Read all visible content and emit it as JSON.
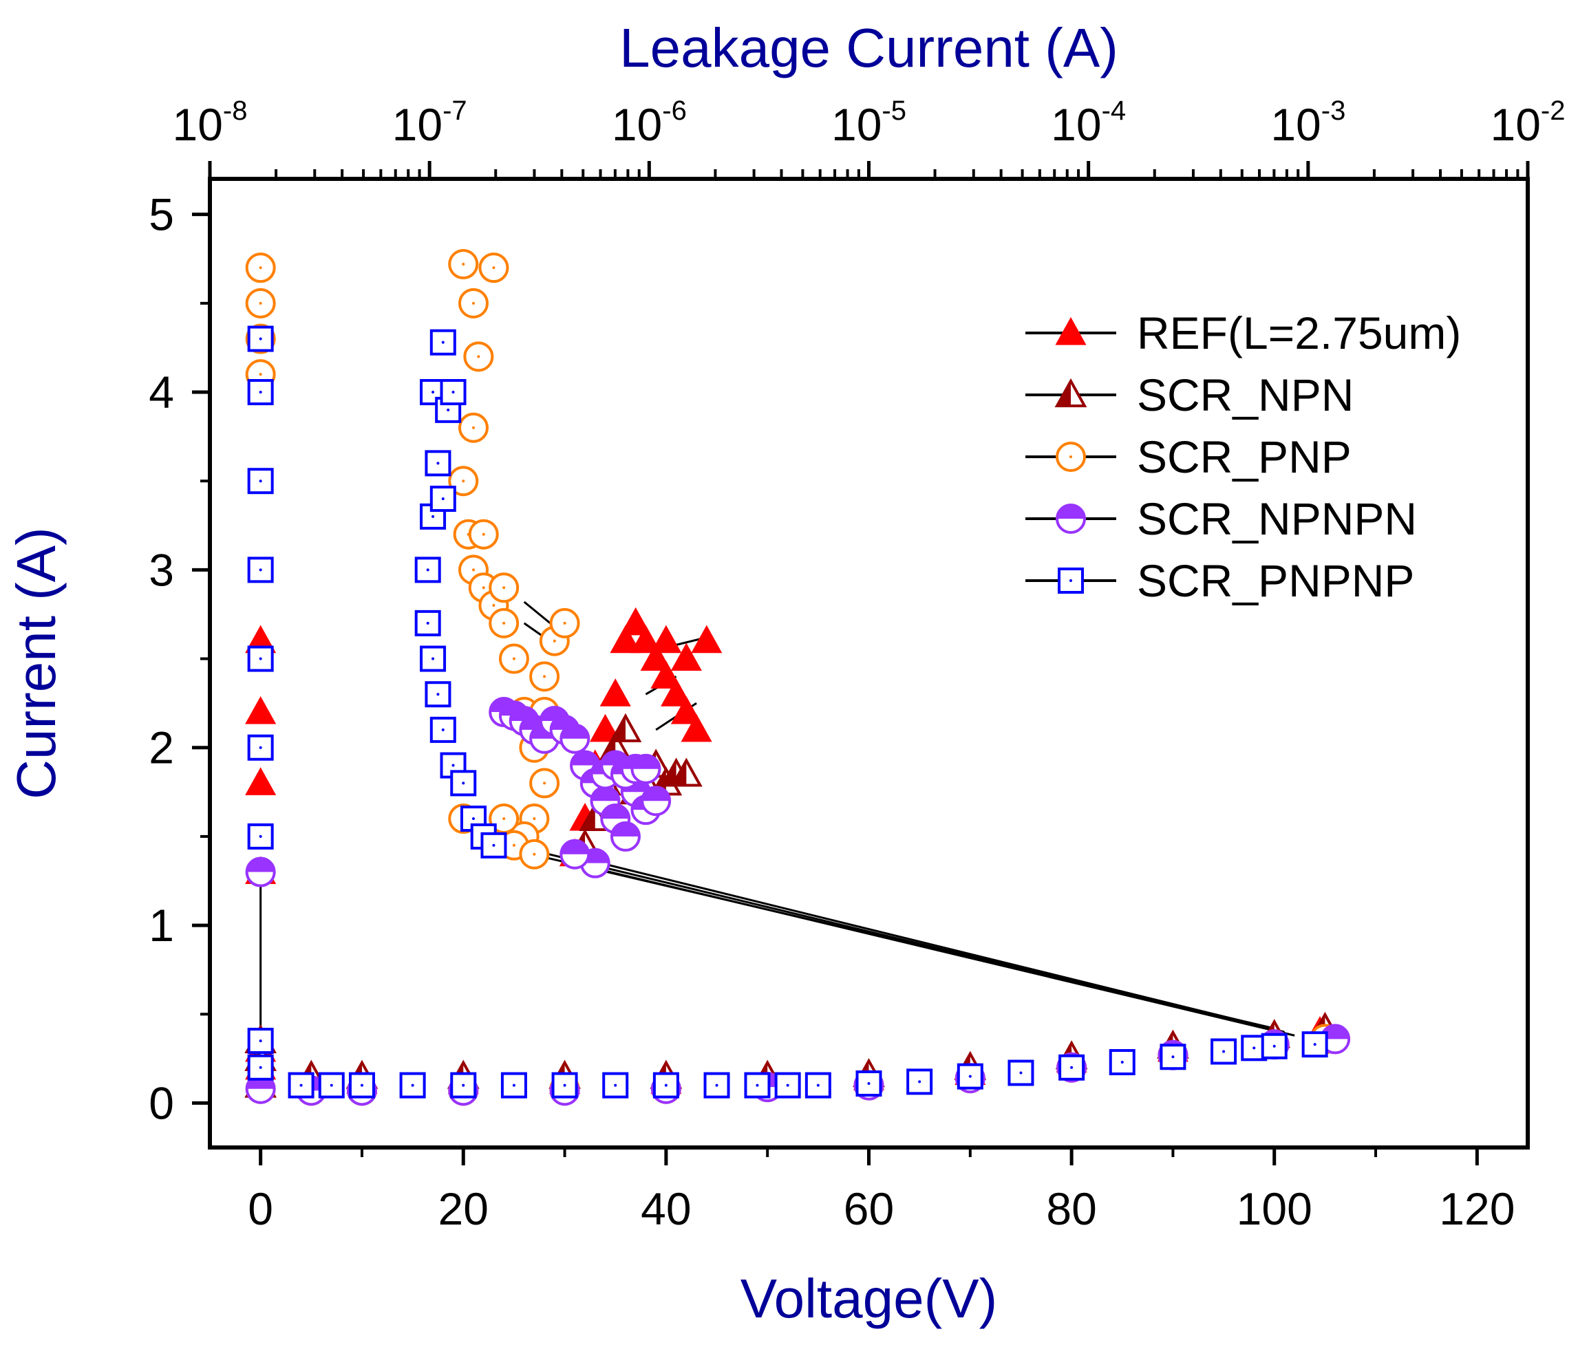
{
  "chart_data": {
    "type": "scatter",
    "title": "",
    "xlabel": "Voltage(V)",
    "ylabel": "Current (A)",
    "x2label": "Leakage Current (A)",
    "xlim": [
      -5,
      125
    ],
    "ylim": [
      -0.25,
      5.2
    ],
    "x2lim": [
      1e-08,
      0.01
    ],
    "x2scale": "log",
    "xticks": [
      "0",
      "20",
      "40",
      "60",
      "80",
      "100",
      "120"
    ],
    "xtick_values": [
      0,
      20,
      40,
      60,
      80,
      100,
      120
    ],
    "yticks": [
      "0",
      "1",
      "2",
      "3",
      "4",
      "5"
    ],
    "ytick_values": [
      0,
      1,
      2,
      3,
      4,
      5
    ],
    "x2ticks": [
      {
        "base": "10",
        "exp": "-8",
        "value": 1e-08
      },
      {
        "base": "10",
        "exp": "-7",
        "value": 1e-07
      },
      {
        "base": "10",
        "exp": "-6",
        "value": 1e-06
      },
      {
        "base": "10",
        "exp": "-5",
        "value": 1e-05
      },
      {
        "base": "10",
        "exp": "-4",
        "value": 0.0001
      },
      {
        "base": "10",
        "exp": "-3",
        "value": 0.001
      },
      {
        "base": "10",
        "exp": "-2",
        "value": 0.01
      }
    ],
    "grid": false,
    "legend_position": "top-right",
    "series": [
      {
        "name": "REF(L=2.75um)",
        "marker": "triangle-filled",
        "color": "#ff0000",
        "points": [
          [
            0,
            0.1
          ],
          [
            0,
            0.2
          ],
          [
            0,
            0.3
          ],
          [
            5,
            0.12
          ],
          [
            10,
            0.12
          ],
          [
            20,
            0.12
          ],
          [
            30,
            0.12
          ],
          [
            40,
            0.12
          ],
          [
            50,
            0.13
          ],
          [
            60,
            0.14
          ],
          [
            70,
            0.17
          ],
          [
            80,
            0.24
          ],
          [
            90,
            0.3
          ],
          [
            100,
            0.38
          ],
          [
            104.5,
            0.4
          ],
          [
            31,
            1.4
          ],
          [
            32,
            1.6
          ],
          [
            33,
            1.9
          ],
          [
            34,
            2.1
          ],
          [
            35,
            2.3
          ],
          [
            36,
            2.6
          ],
          [
            37,
            2.7
          ],
          [
            38,
            2.6
          ],
          [
            39,
            2.5
          ],
          [
            40,
            2.4
          ],
          [
            41,
            2.3
          ],
          [
            42,
            2.2
          ],
          [
            43,
            2.1
          ],
          [
            44,
            2.6
          ],
          [
            40,
            2.6
          ],
          [
            42,
            2.5
          ],
          [
            0,
            1.3
          ],
          [
            0,
            1.8
          ],
          [
            0,
            2.2
          ],
          [
            0,
            2.6
          ]
        ]
      },
      {
        "name": "SCR_NPN",
        "marker": "triangle-half",
        "color": "#990000",
        "points": [
          [
            0,
            0.1
          ],
          [
            0,
            0.25
          ],
          [
            0,
            0.35
          ],
          [
            5,
            0.15
          ],
          [
            10,
            0.15
          ],
          [
            20,
            0.15
          ],
          [
            30,
            0.15
          ],
          [
            40,
            0.15
          ],
          [
            50,
            0.15
          ],
          [
            60,
            0.16
          ],
          [
            70,
            0.2
          ],
          [
            80,
            0.26
          ],
          [
            90,
            0.32
          ],
          [
            100,
            0.38
          ],
          [
            105,
            0.42
          ],
          [
            32,
            1.45
          ],
          [
            33,
            1.6
          ],
          [
            34,
            1.8
          ],
          [
            35,
            2.0
          ],
          [
            36,
            2.1
          ],
          [
            37,
            1.75
          ],
          [
            38,
            1.8
          ],
          [
            39,
            1.9
          ],
          [
            40,
            1.8
          ],
          [
            41,
            1.85
          ],
          [
            42,
            1.85
          ]
        ]
      },
      {
        "name": "SCR_PNP",
        "marker": "circle-open",
        "color": "#ff8000",
        "points": [
          [
            0,
            0.08
          ],
          [
            0,
            4.7
          ],
          [
            0,
            4.5
          ],
          [
            0,
            4.3
          ],
          [
            0,
            4.1
          ],
          [
            5,
            0.07
          ],
          [
            10,
            0.07
          ],
          [
            20,
            0.07
          ],
          [
            30,
            0.08
          ],
          [
            40,
            0.08
          ],
          [
            50,
            0.09
          ],
          [
            60,
            0.1
          ],
          [
            70,
            0.14
          ],
          [
            80,
            0.2
          ],
          [
            90,
            0.27
          ],
          [
            100,
            0.33
          ],
          [
            105,
            0.36
          ],
          [
            20,
            4.72
          ],
          [
            21,
            4.5
          ],
          [
            21.5,
            4.2
          ],
          [
            21,
            3.8
          ],
          [
            20,
            3.5
          ],
          [
            20.5,
            3.2
          ],
          [
            21,
            3.0
          ],
          [
            22,
            2.9
          ],
          [
            23,
            2.8
          ],
          [
            24,
            2.7
          ],
          [
            25,
            2.5
          ],
          [
            26,
            2.2
          ],
          [
            27,
            2.0
          ],
          [
            28,
            1.8
          ],
          [
            29,
            2.6
          ],
          [
            30,
            2.7
          ],
          [
            28,
            2.4
          ],
          [
            27,
            1.6
          ],
          [
            26,
            1.5
          ],
          [
            25,
            1.45
          ],
          [
            27,
            1.4
          ],
          [
            24,
            1.6
          ],
          [
            20,
            1.6
          ],
          [
            23,
            4.7
          ],
          [
            22,
            3.2
          ],
          [
            24,
            2.9
          ],
          [
            28,
            2.2
          ]
        ]
      },
      {
        "name": "SCR_NPNPN",
        "marker": "circle-half",
        "color": "#9933ff",
        "points": [
          [
            0,
            0.08
          ],
          [
            0,
            1.3
          ],
          [
            5,
            0.07
          ],
          [
            10,
            0.07
          ],
          [
            20,
            0.07
          ],
          [
            30,
            0.07
          ],
          [
            40,
            0.08
          ],
          [
            50,
            0.09
          ],
          [
            60,
            0.1
          ],
          [
            70,
            0.14
          ],
          [
            80,
            0.2
          ],
          [
            90,
            0.27
          ],
          [
            100,
            0.33
          ],
          [
            106,
            0.36
          ],
          [
            24,
            2.2
          ],
          [
            25,
            2.18
          ],
          [
            26,
            2.15
          ],
          [
            27,
            2.1
          ],
          [
            28,
            2.05
          ],
          [
            29,
            2.15
          ],
          [
            30,
            2.1
          ],
          [
            31,
            2.05
          ],
          [
            32,
            1.9
          ],
          [
            33,
            1.8
          ],
          [
            34,
            1.7
          ],
          [
            35,
            1.6
          ],
          [
            36,
            1.5
          ],
          [
            37,
            1.75
          ],
          [
            38,
            1.65
          ],
          [
            39,
            1.7
          ],
          [
            33,
            1.35
          ],
          [
            31,
            1.4
          ],
          [
            34,
            1.85
          ],
          [
            35,
            1.9
          ],
          [
            36,
            1.85
          ],
          [
            37,
            1.88
          ],
          [
            38,
            1.88
          ]
        ]
      },
      {
        "name": "SCR_PNPNP",
        "marker": "square-open",
        "color": "#0000ff",
        "points": [
          [
            0,
            0.35
          ],
          [
            0,
            0.2
          ],
          [
            0,
            1.5
          ],
          [
            0,
            2.0
          ],
          [
            0,
            2.5
          ],
          [
            0,
            3.0
          ],
          [
            0,
            3.5
          ],
          [
            0,
            4.0
          ],
          [
            0,
            4.3
          ],
          [
            4,
            0.1
          ],
          [
            7,
            0.1
          ],
          [
            10,
            0.1
          ],
          [
            15,
            0.1
          ],
          [
            20,
            0.1
          ],
          [
            25,
            0.1
          ],
          [
            30,
            0.1
          ],
          [
            35,
            0.1
          ],
          [
            40,
            0.1
          ],
          [
            45,
            0.1
          ],
          [
            49,
            0.1
          ],
          [
            52,
            0.1
          ],
          [
            55,
            0.1
          ],
          [
            60,
            0.11
          ],
          [
            65,
            0.12
          ],
          [
            70,
            0.15
          ],
          [
            75,
            0.17
          ],
          [
            80,
            0.2
          ],
          [
            85,
            0.23
          ],
          [
            90,
            0.26
          ],
          [
            95,
            0.29
          ],
          [
            98,
            0.31
          ],
          [
            100,
            0.32
          ],
          [
            104,
            0.33
          ],
          [
            17,
            4.0
          ],
          [
            17.5,
            3.6
          ],
          [
            17,
            3.3
          ],
          [
            16.5,
            3.0
          ],
          [
            16.5,
            2.7
          ],
          [
            17,
            2.5
          ],
          [
            17.5,
            2.3
          ],
          [
            18,
            2.1
          ],
          [
            19,
            1.9
          ],
          [
            20,
            1.8
          ],
          [
            21,
            1.6
          ],
          [
            22,
            1.5
          ],
          [
            23,
            1.45
          ],
          [
            18,
            4.28
          ],
          [
            18.5,
            3.9
          ],
          [
            19,
            4.0
          ],
          [
            18,
            3.4
          ]
        ]
      }
    ],
    "connector_lines": [
      {
        "color": "#000000",
        "from": [
          0,
          1.3
        ],
        "to": [
          0,
          0.35
        ]
      },
      {
        "color": "#000000",
        "from": [
          23,
          1.45
        ],
        "to": [
          100,
          0.42
        ]
      },
      {
        "color": "#000000",
        "from": [
          27,
          1.42
        ],
        "to": [
          101,
          0.4
        ]
      },
      {
        "color": "#000000",
        "from": [
          33,
          1.32
        ],
        "to": [
          102,
          0.38
        ]
      },
      {
        "color": "#000000",
        "from": [
          30,
          1.4
        ],
        "to": [
          100.5,
          0.41
        ]
      },
      {
        "color": "#000000",
        "from": [
          26,
          2.82
        ],
        "to": [
          29,
          2.68
        ]
      },
      {
        "color": "#000000",
        "from": [
          26,
          2.7
        ],
        "to": [
          28,
          2.62
        ]
      },
      {
        "color": "#000000",
        "from": [
          39,
          2.55
        ],
        "to": [
          44,
          2.62
        ]
      },
      {
        "color": "#000000",
        "from": [
          38,
          2.3
        ],
        "to": [
          41,
          2.4
        ]
      },
      {
        "color": "#000000",
        "from": [
          39,
          2.1
        ],
        "to": [
          43,
          2.25
        ]
      }
    ]
  }
}
